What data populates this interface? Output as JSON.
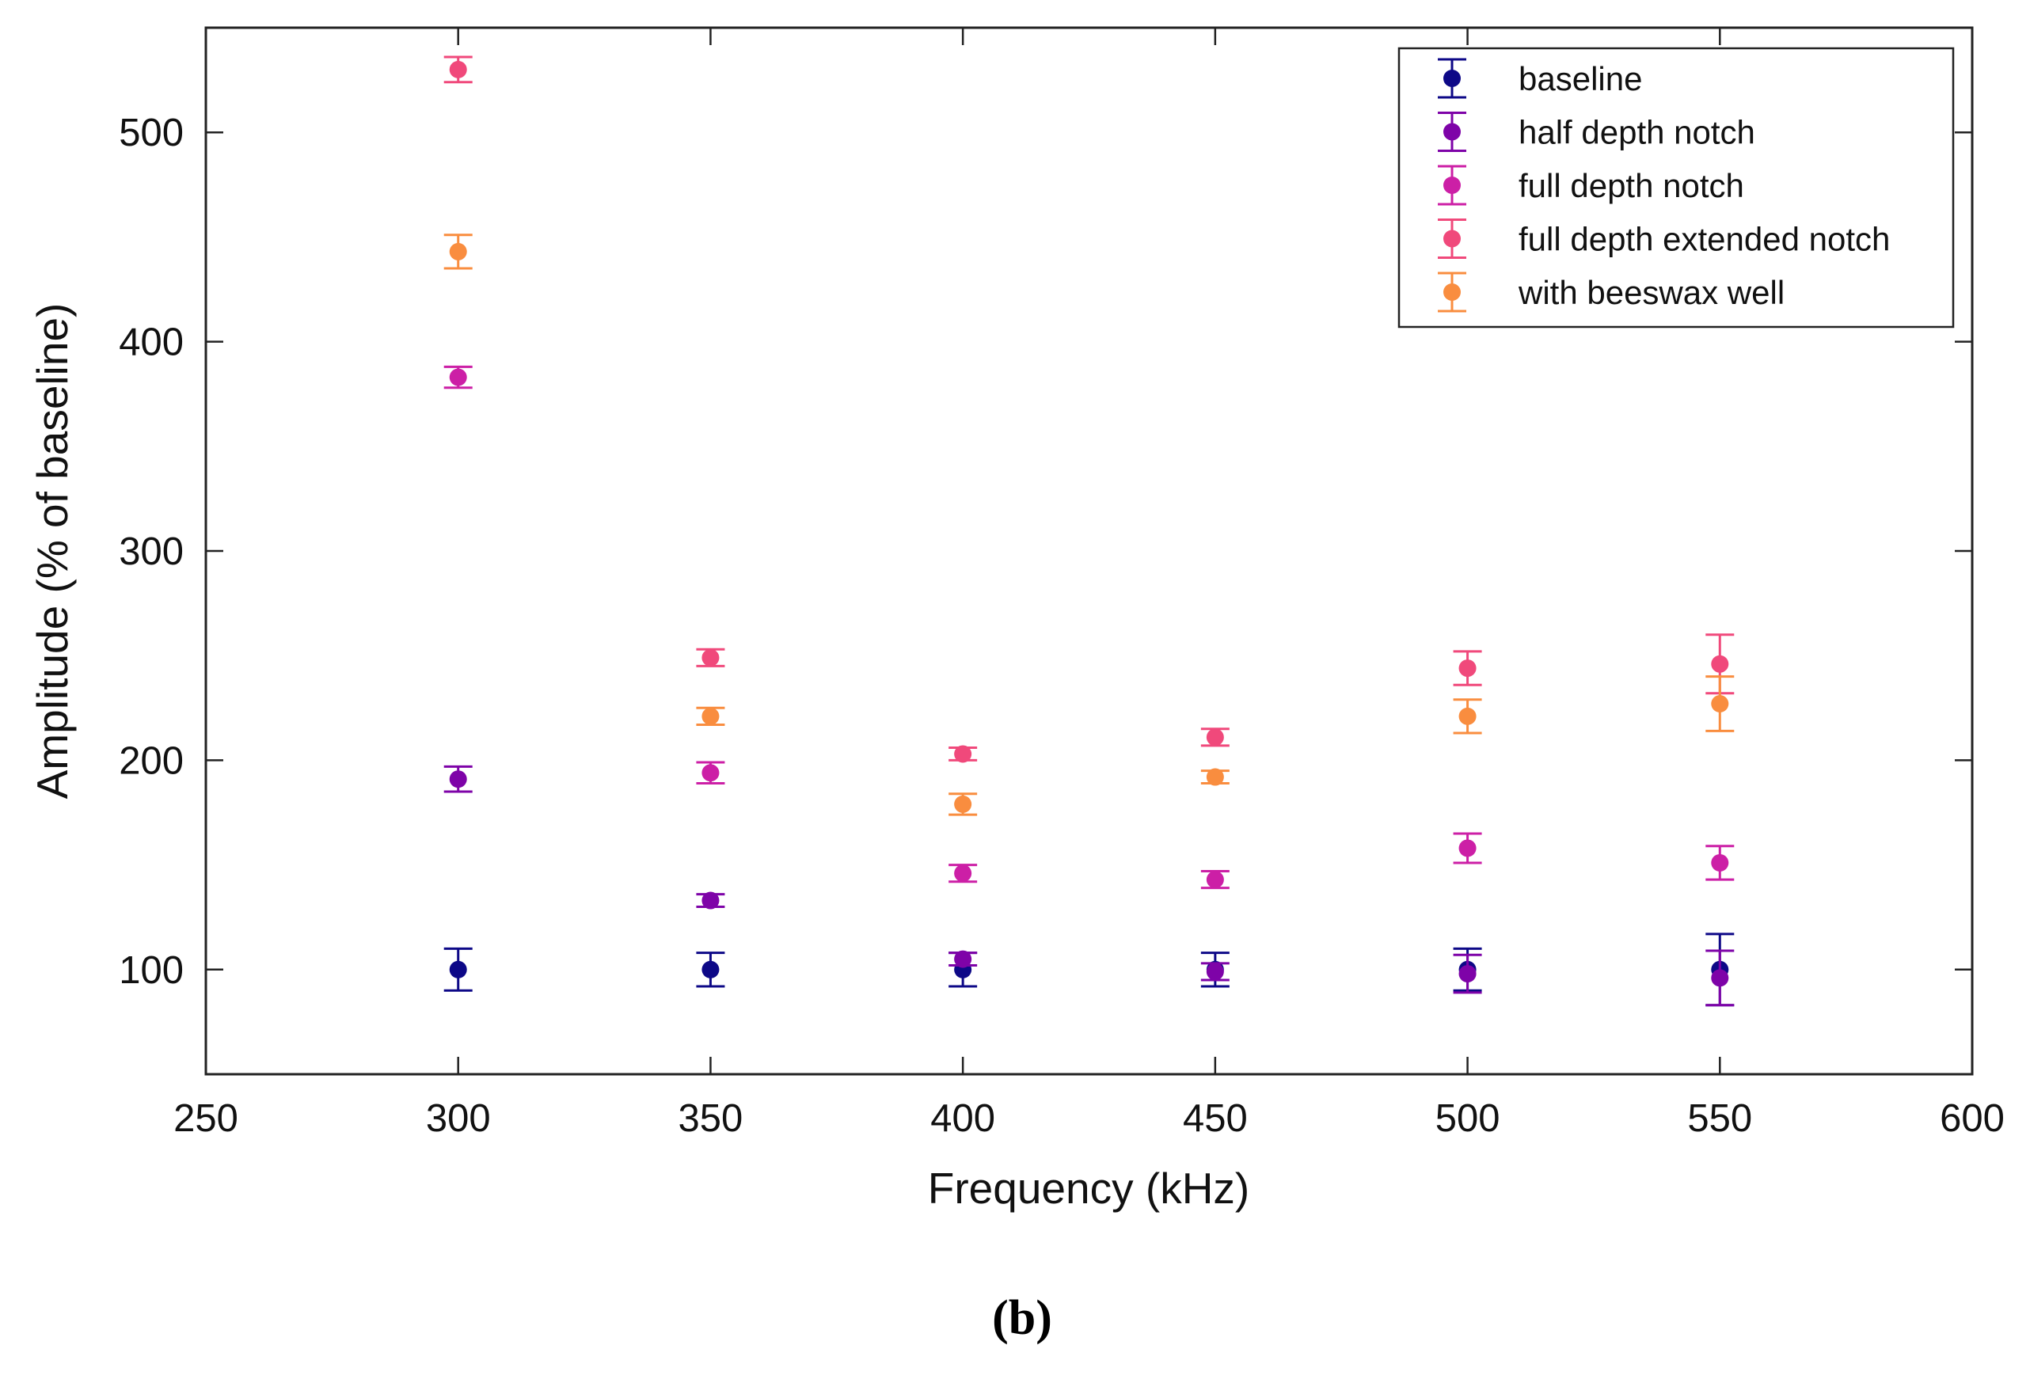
{
  "chart_data": {
    "type": "scatter",
    "xlabel": "Frequency (kHz)",
    "ylabel": "Amplitude (% of baseline)",
    "xlim": [
      250,
      600
    ],
    "ylim": [
      50,
      550
    ],
    "xticks": [
      250,
      300,
      350,
      400,
      450,
      500,
      550,
      600
    ],
    "yticks": [
      100,
      200,
      300,
      400,
      500
    ],
    "legend_position": "top-right",
    "x": [
      300,
      350,
      400,
      450,
      500,
      550
    ],
    "series": [
      {
        "name": "baseline",
        "color": "#0d0887",
        "values": [
          100,
          100,
          100,
          100,
          100,
          100
        ],
        "errors": [
          10,
          8,
          8,
          8,
          10,
          17
        ]
      },
      {
        "name": "half depth notch",
        "color": "#7e03a8",
        "values": [
          191,
          133,
          105,
          99,
          98,
          96
        ],
        "errors": [
          6,
          3,
          3,
          4,
          9,
          13
        ]
      },
      {
        "name": "full depth notch",
        "color": "#cc1fa6",
        "values": [
          383,
          194,
          146,
          143,
          158,
          151
        ],
        "errors": [
          5,
          5,
          4,
          4,
          7,
          8
        ]
      },
      {
        "name": "full depth extended notch",
        "color": "#f0497b",
        "values": [
          530,
          249,
          203,
          211,
          244,
          246
        ],
        "errors": [
          6,
          4,
          3,
          4,
          8,
          14
        ]
      },
      {
        "name": "with beeswax well",
        "color": "#f98d3f",
        "values": [
          443,
          221,
          179,
          192,
          221,
          227
        ],
        "errors": [
          8,
          4,
          5,
          3,
          8,
          13
        ]
      }
    ]
  },
  "caption": "(b)"
}
